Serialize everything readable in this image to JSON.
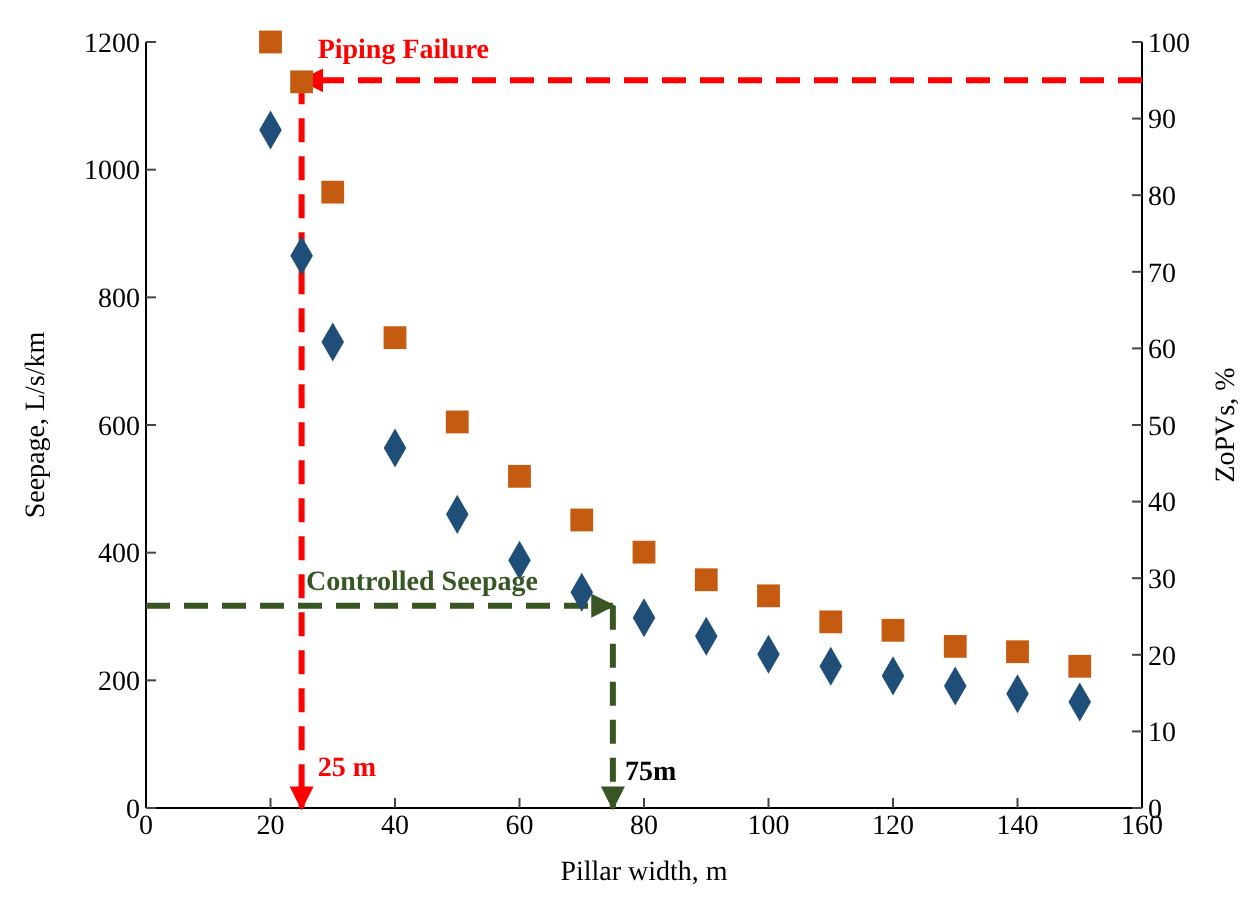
{
  "chart_data": {
    "type": "scatter",
    "xlabel": "Pillar width, m",
    "ylabel": "Seepage, L/s/km",
    "y2label": "ZoPVs, %",
    "xlim": [
      0,
      160
    ],
    "xticks": [
      0,
      20,
      40,
      60,
      80,
      100,
      120,
      140,
      160
    ],
    "ylim": [
      0,
      1200
    ],
    "yticks": [
      0,
      200,
      400,
      600,
      800,
      1000,
      1200
    ],
    "y2lim": [
      0,
      100
    ],
    "y2ticks": [
      0,
      10,
      20,
      30,
      40,
      50,
      60,
      70,
      80,
      90,
      100
    ],
    "marker": "diamond",
    "series": [
      {
        "color": "#1f4e79",
        "x": [
          20,
          25,
          30,
          40,
          50,
          60,
          70,
          80,
          90,
          100,
          110,
          120,
          130,
          140,
          150
        ],
        "values": [
          1062,
          865,
          730,
          564,
          460,
          388,
          338,
          298,
          269,
          241,
          222,
          207,
          191,
          179,
          166
        ]
      },
      {
        "color": "#c55a11",
        "marker": "square",
        "axis": "y2",
        "x": [
          20,
          25,
          30,
          40,
          50,
          60,
          70,
          80,
          90,
          100,
          110,
          120,
          130,
          140,
          150
        ],
        "values": [
          100,
          94.8,
          80.4,
          61.4,
          50.4,
          43.3,
          37.6,
          33.4,
          29.8,
          27.7,
          24.3,
          23.2,
          21.1,
          20.4,
          18.5
        ]
      }
    ],
    "ref_lines": [
      {
        "axis": "x",
        "value": 25,
        "color": "#ff0000",
        "line_style": "dashed"
      },
      {
        "axis": "y2",
        "value": 95,
        "color": "#ff0000",
        "line_style": "dashed"
      },
      {
        "axis": "y",
        "value": 317,
        "color": "#375623",
        "line_style": "dashed"
      },
      {
        "axis": "x",
        "value": 75,
        "color": "#375623",
        "line_style": "dashed"
      }
    ],
    "annotations": [
      "Piping Failure",
      "25 m",
      "Controlled Seepage",
      "75m"
    ]
  }
}
